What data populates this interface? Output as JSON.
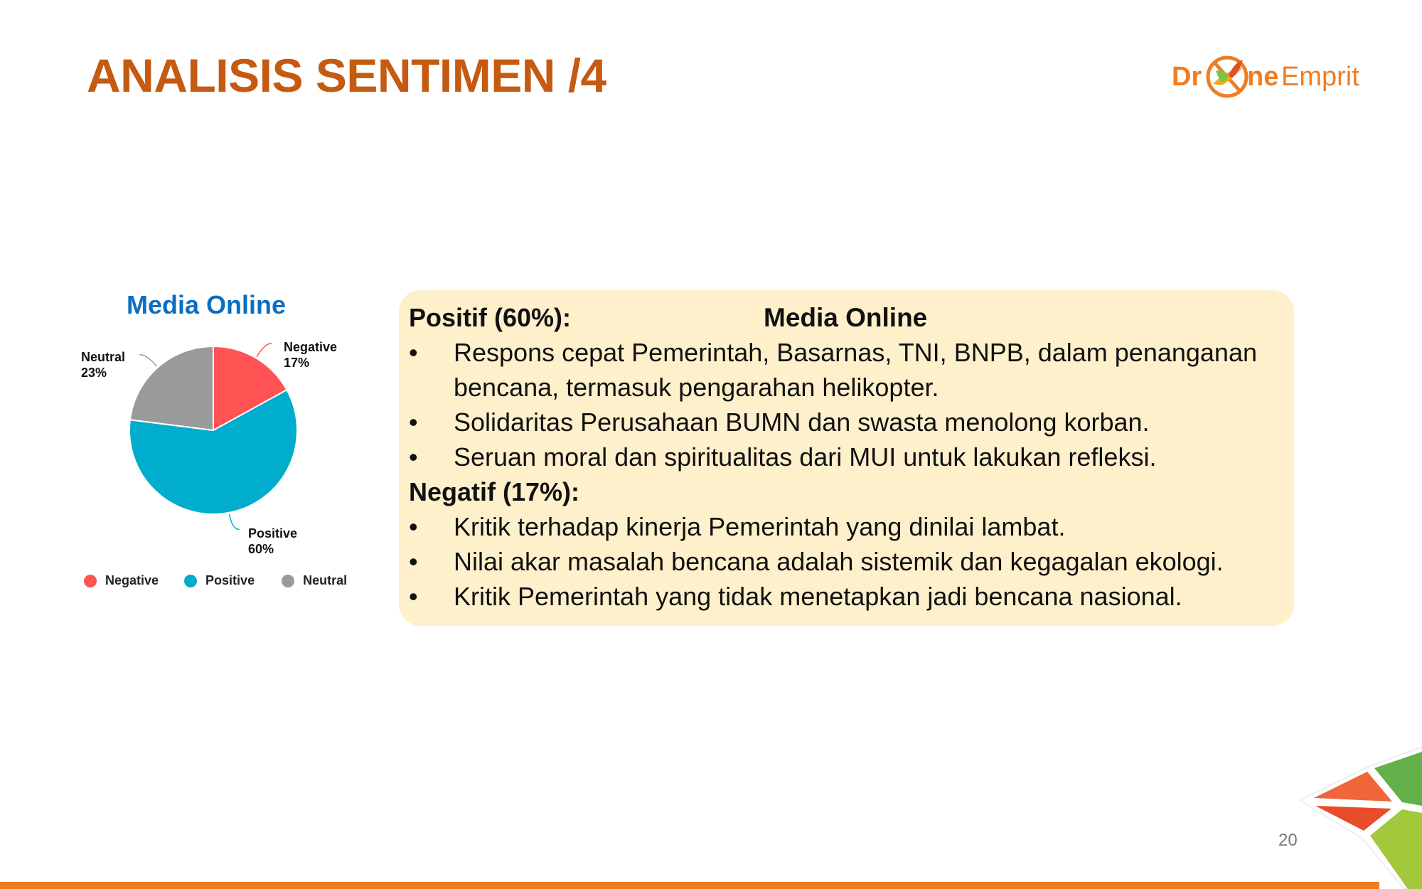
{
  "header": {
    "title": "ANALISIS SENTIMEN /4",
    "logo_text": "DroneEmprit"
  },
  "chart_data": {
    "type": "pie",
    "title": "Media Online",
    "categories": [
      "Negative",
      "Positive",
      "Neutral"
    ],
    "values": [
      17,
      60,
      23
    ],
    "labels": [
      "17%",
      "60%",
      "23%"
    ],
    "colors": [
      "#ff5252",
      "#00adcc",
      "#9a9a9a"
    ],
    "legend": "bottom"
  },
  "summary": {
    "title": "Media Online",
    "positive_heading": "Positif (60%):",
    "positive_items": [
      "Respons cepat Pemerintah, Basarnas, TNI, BNPB, dalam penanganan bencana, termasuk pengarahan helikopter.",
      "Solidaritas Perusahaan BUMN dan swasta menolong korban.",
      "Seruan moral dan spiritualitas dari MUI untuk lakukan refleksi."
    ],
    "negative_heading": "Negatif (17%):",
    "negative_items": [
      "Kritik terhadap kinerja Pemerintah yang dinilai lambat.",
      "Nilai akar masalah bencana adalah sistemik dan kegagalan ekologi.",
      "Kritik Pemerintah yang tidak menetapkan jadi bencana nasional."
    ],
    "bullet": "•"
  },
  "footer": {
    "page_number": "20"
  },
  "colors": {
    "title": "#c55a11",
    "chart_title": "#0a6fc2",
    "box_bg": "#fff0cc",
    "bar": "#ed7d22"
  }
}
